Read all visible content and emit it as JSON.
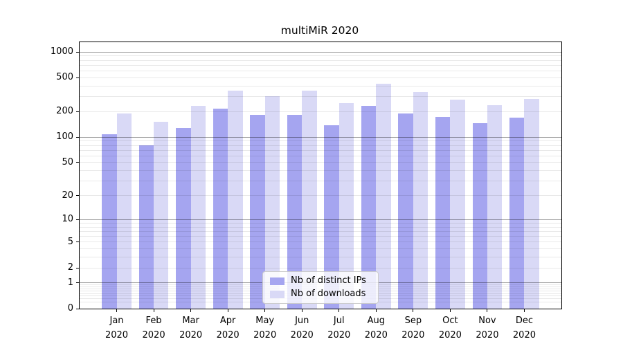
{
  "title": "multiMiR 2020",
  "chart_data": {
    "type": "bar",
    "title": "multiMiR 2020",
    "yscale": "log1p",
    "grid": true,
    "legend_position": "lower center",
    "categories": [
      "Jan",
      "Feb",
      "Mar",
      "Apr",
      "May",
      "Jun",
      "Jul",
      "Aug",
      "Sep",
      "Oct",
      "Nov",
      "Dec"
    ],
    "category_year": "2020",
    "series": [
      {
        "name": "Nb of distinct IPs",
        "color": "#a5a5f0",
        "values": [
          108,
          80,
          128,
          218,
          182,
          184,
          139,
          232,
          190,
          172,
          145,
          169
        ]
      },
      {
        "name": "Nb of downloads",
        "color": "#d9d9f6",
        "values": [
          190,
          153,
          235,
          355,
          304,
          355,
          252,
          425,
          342,
          277,
          237,
          279
        ]
      }
    ],
    "yticks": [
      0,
      1,
      2,
      5,
      10,
      20,
      50,
      100,
      200,
      500,
      1000
    ],
    "ylim": [
      0,
      1300
    ],
    "major_gridlines": [
      1,
      10,
      100,
      1000
    ],
    "xlabel": "",
    "ylabel": ""
  },
  "colors": {
    "background": "#ffffff",
    "axis": "#000000",
    "major_grid": "#ababab",
    "minor_grid": "#e9e9e9",
    "legend_border": "#cbcbcb"
  }
}
